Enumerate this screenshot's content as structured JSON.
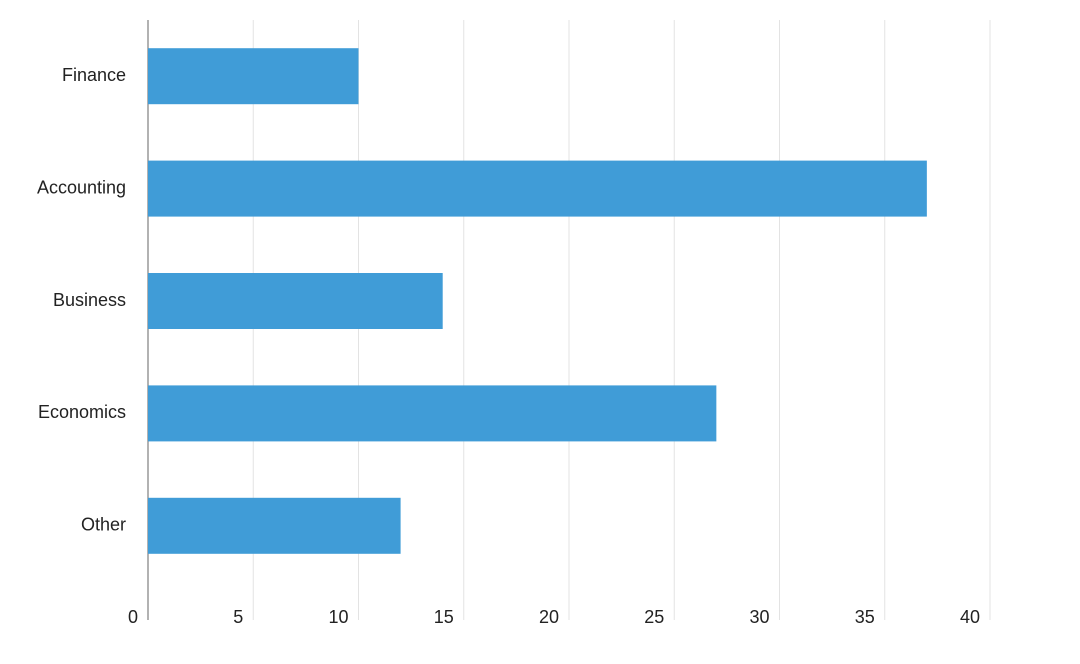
{
  "chart_data": {
    "type": "barh",
    "categories": [
      "Finance",
      "Accounting",
      "Business",
      "Economics",
      "Other"
    ],
    "values": [
      10,
      37,
      14,
      27,
      12
    ],
    "color": "#409cd7",
    "xlim": [
      0,
      40
    ],
    "xticks": [
      0,
      5,
      10,
      15,
      20,
      25,
      30,
      35,
      40
    ],
    "grid": true
  }
}
